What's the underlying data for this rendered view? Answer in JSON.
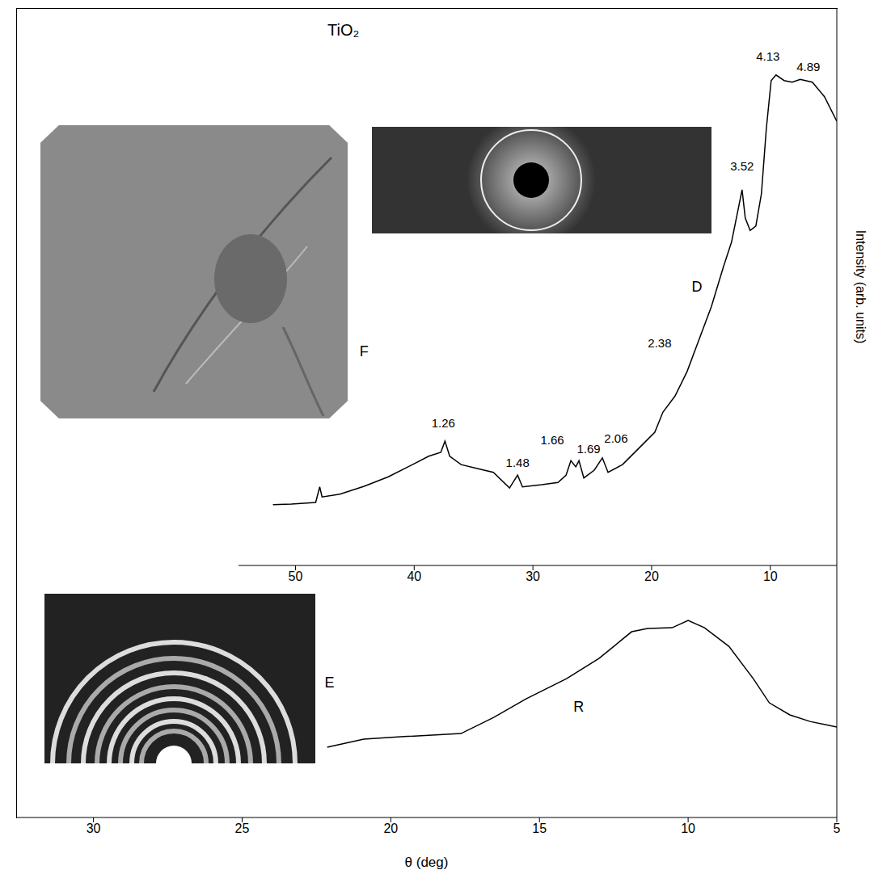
{
  "chart_data": [
    {
      "type": "line",
      "title": "TiO₂",
      "y_label": "Intensity (arb. units)",
      "xlim": [
        54.8,
        4.4
      ],
      "xticks": [
        50,
        40,
        30,
        20,
        10
      ],
      "ylim": [
        0,
        100
      ],
      "tick_labels": "x",
      "color": "#000000",
      "x": [
        51.9,
        50.34,
        48.3,
        47.96,
        47.76,
        46.26,
        44.22,
        42.18,
        40.14,
        38.78,
        37.76,
        37.41,
        37.01,
        36.05,
        34.69,
        33.33,
        31.97,
        31.29,
        30.88,
        29.25,
        27.89,
        27.21,
        26.8,
        26.39,
        26.12,
        25.71,
        24.83,
        24.15,
        23.67,
        22.45,
        21.09,
        19.73,
        19.05,
        18.03,
        17.01,
        15.99,
        14.97,
        13.95,
        13.27,
        12.38,
        12.11,
        11.7,
        11.22,
        10.75,
        10.34,
        9.93,
        9.52,
        8.84,
        8.16,
        7.48,
        6.46,
        5.44,
        4.4
      ],
      "values": [
        10.9,
        11.0,
        11.3,
        14.1,
        12.3,
        12.8,
        14.2,
        15.9,
        18.1,
        19.6,
        20.3,
        22.3,
        19.6,
        18.1,
        17.4,
        16.7,
        13.9,
        16.2,
        14.1,
        14.5,
        14.9,
        16.2,
        18.8,
        17.7,
        18.8,
        15.7,
        17.1,
        19.3,
        16.7,
        18.1,
        21.0,
        23.9,
        27.5,
        30.4,
        34.8,
        40.6,
        46.4,
        53.6,
        58.0,
        67.4,
        62.3,
        60.1,
        60.9,
        66.7,
        78.3,
        87.0,
        88.0,
        87.0,
        86.7,
        87.2,
        86.7,
        84.1,
        79.7
      ],
      "annotations": [
        {
          "text": "1.26",
          "x": 37.55,
          "y": 25.5
        },
        {
          "text": "1.48",
          "x": 31.29,
          "y": 18.4
        },
        {
          "text": "1.66",
          "x": 28.37,
          "y": 22.5
        },
        {
          "text": "1.69",
          "x": 25.31,
          "y": 20.9
        },
        {
          "text": "2.06",
          "x": 23.0,
          "y": 22.8
        },
        {
          "text": "2.38",
          "x": 19.32,
          "y": 39.9
        },
        {
          "text": "3.52",
          "x": 12.38,
          "y": 71.7
        },
        {
          "text": "4.13",
          "x": 10.2,
          "y": 91.3
        },
        {
          "text": "4.89",
          "x": 6.8,
          "y": 89.4
        },
        {
          "text": "D",
          "x": 16.19,
          "y": 50
        },
        {
          "text": "F",
          "x": 44.22,
          "y": 38.4
        }
      ]
    },
    {
      "type": "line",
      "x_label": "θ (deg)",
      "xlim": [
        32.6,
        5
      ],
      "xticks": [
        30,
        25,
        20,
        15,
        10,
        5
      ],
      "ylim": [
        0,
        100
      ],
      "tick_labels": "x",
      "color": "#000000",
      "x": [
        22.14,
        20.91,
        19.55,
        17.64,
        16.54,
        15.45,
        14.09,
        13.0,
        11.9,
        11.36,
        10.54,
        10.0,
        9.45,
        8.63,
        7.81,
        7.27,
        6.58,
        5.9,
        5.0
      ],
      "values": [
        27.9,
        31.1,
        32.1,
        33.3,
        39.7,
        47.1,
        55.1,
        63.1,
        73.7,
        75.0,
        75.3,
        78.2,
        75.3,
        67.9,
        55.1,
        45.5,
        40.7,
        38.1,
        35.9
      ],
      "annotations": [
        {
          "text": "R",
          "x": 13.68,
          "y": 43.9
        },
        {
          "text": "E",
          "x": 22.06,
          "y": 53.5
        }
      ]
    }
  ]
}
